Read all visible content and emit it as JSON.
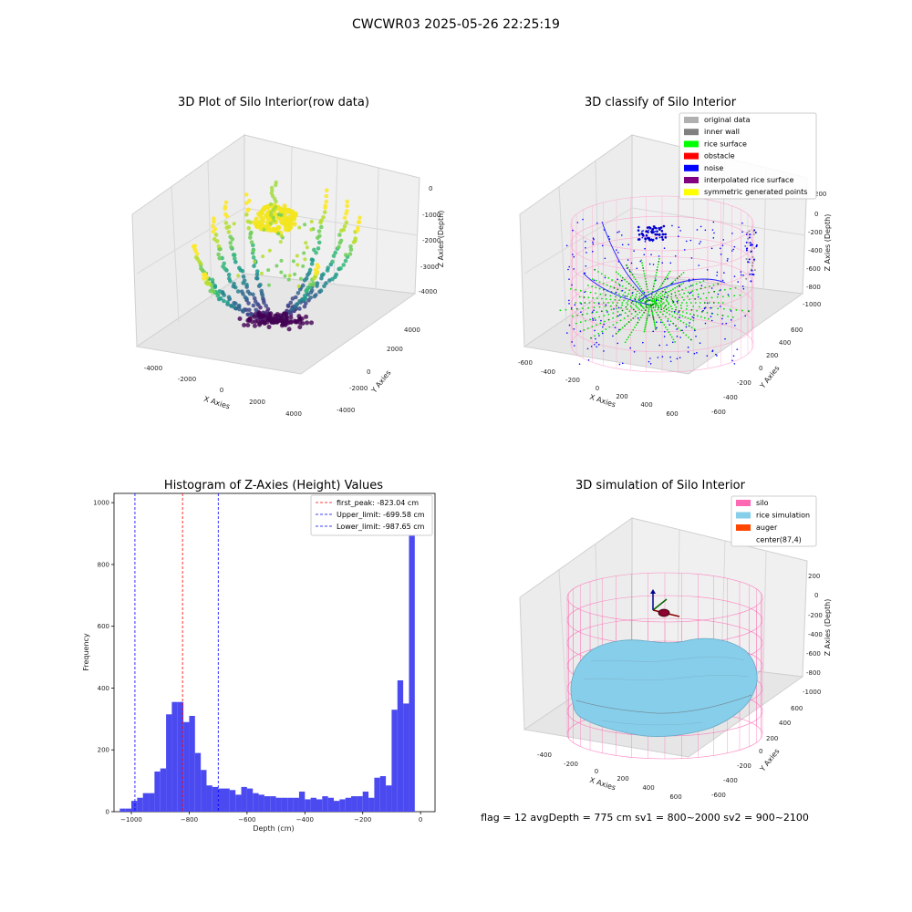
{
  "suptitle": "CWCWR03 2025-05-26 22:25:19",
  "footer": "flag = 12   avgDepth = 775 cm  sv1 = 800~2000  sv2 = 900~2100",
  "chart_data": [
    {
      "type": "scatter",
      "title": "3D Plot of Silo Interior(row data)",
      "xlabel": "X Axies",
      "ylabel": "Y Axies",
      "zlabel": "Z Axies (Depth)",
      "x_ticks": [
        "-4000",
        "-2000",
        "0",
        "2000",
        "4000"
      ],
      "y_ticks": [
        "-4000",
        "-2000",
        "0",
        "2000",
        "4000"
      ],
      "z_ticks": [
        "0",
        "-1000",
        "-2000",
        "-3000",
        "-4000"
      ],
      "colormap": "viridis"
    },
    {
      "type": "scatter",
      "title": "3D classify of Silo Interior",
      "xlabel": "X Axies",
      "ylabel": "Y Axies",
      "zlabel": "Z Axies (Depth)",
      "x_ticks": [
        "-600",
        "-400",
        "-200",
        "0",
        "200",
        "400",
        "600"
      ],
      "y_ticks": [
        "-600",
        "-400",
        "-200",
        "0",
        "200",
        "400",
        "600"
      ],
      "z_ticks": [
        "200",
        "0",
        "-200",
        "-400",
        "-600",
        "-800",
        "-1000"
      ],
      "legend": [
        {
          "label": "original data",
          "color": "#b0b0b0"
        },
        {
          "label": "inner wall",
          "color": "#808080"
        },
        {
          "label": "rice surface",
          "color": "#00ff00"
        },
        {
          "label": "obstacle",
          "color": "#ff0000"
        },
        {
          "label": "noise",
          "color": "#0000ff"
        },
        {
          "label": "interpolated rice surface",
          "color": "#800080"
        },
        {
          "label": "symmetric generated points",
          "color": "#ffff00"
        }
      ]
    },
    {
      "type": "bar",
      "title": "Histogram of Z-Axies (Height) Values",
      "xlabel": "Depth (cm)",
      "ylabel": "Frequency",
      "xlim": [
        -1060,
        50
      ],
      "ylim": [
        0,
        1030
      ],
      "x_ticks": [
        -1000,
        -800,
        -600,
        -400,
        -200,
        0
      ],
      "y_ticks": [
        0,
        200,
        400,
        600,
        800,
        1000
      ],
      "bin_width": 20,
      "bin_start": -1040,
      "values": [
        10,
        10,
        35,
        45,
        60,
        60,
        130,
        140,
        315,
        355,
        355,
        290,
        310,
        190,
        135,
        85,
        80,
        75,
        75,
        70,
        55,
        80,
        75,
        60,
        55,
        50,
        50,
        45,
        45,
        45,
        45,
        65,
        40,
        45,
        40,
        50,
        45,
        35,
        40,
        45,
        50,
        50,
        65,
        45,
        110,
        115,
        85,
        330,
        425,
        350,
        970
      ],
      "bar_color": "#4a4af0",
      "lines": [
        {
          "label": "first_peak: -823.04 cm",
          "x": -823.04,
          "color": "#ff0000"
        },
        {
          "label": "Upper_limit: -699.58 cm",
          "x": -699.58,
          "color": "#0000ff"
        },
        {
          "label": "Lower_limit: -987.65 cm",
          "x": -987.65,
          "color": "#0000ff"
        }
      ]
    },
    {
      "type": "area",
      "title": "3D simulation of Silo Interior",
      "xlabel": "X Axies",
      "ylabel": "Y Axies",
      "zlabel": "Z Axies (Depth)",
      "x_ticks": [
        "-400",
        "-200",
        "0",
        "200",
        "400",
        "600"
      ],
      "y_ticks": [
        "-600",
        "-400",
        "-200",
        "0",
        "200",
        "400",
        "600"
      ],
      "z_ticks": [
        "200",
        "0",
        "-200",
        "-400",
        "-600",
        "-800",
        "-1000"
      ],
      "legend": [
        {
          "label": "silo",
          "color": "#ff69b4"
        },
        {
          "label": "rice simulation",
          "color": "#87ceeb"
        },
        {
          "label": "auger",
          "color": "#ff4500"
        },
        {
          "label": "center(87,4)",
          "color": ""
        }
      ]
    }
  ]
}
